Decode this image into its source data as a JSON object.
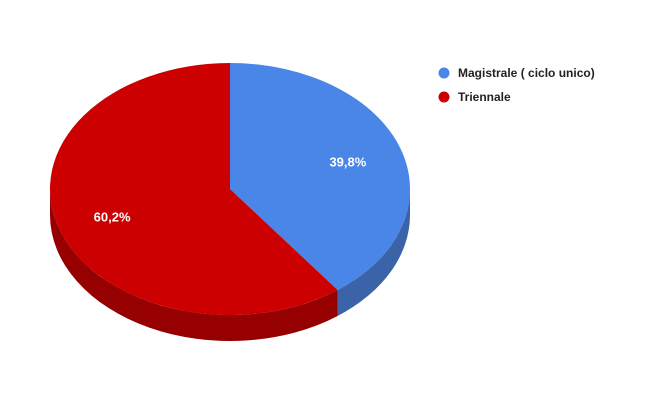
{
  "chart_data": {
    "type": "pie",
    "style": "3d",
    "title": "",
    "slices": [
      {
        "label": "Magistrale ( ciclo unico)",
        "value": 39.8,
        "value_label": "39,8%",
        "color": "#4a86e8",
        "side_color": "#3a63a8"
      },
      {
        "label": "Triennale",
        "value": 60.2,
        "value_label": "60,2%",
        "color": "#cc0000",
        "side_color": "#960000"
      }
    ],
    "legend": {
      "position": "top-right",
      "entries": [
        "Magistrale ( ciclo unico)",
        "Triennale"
      ]
    }
  }
}
